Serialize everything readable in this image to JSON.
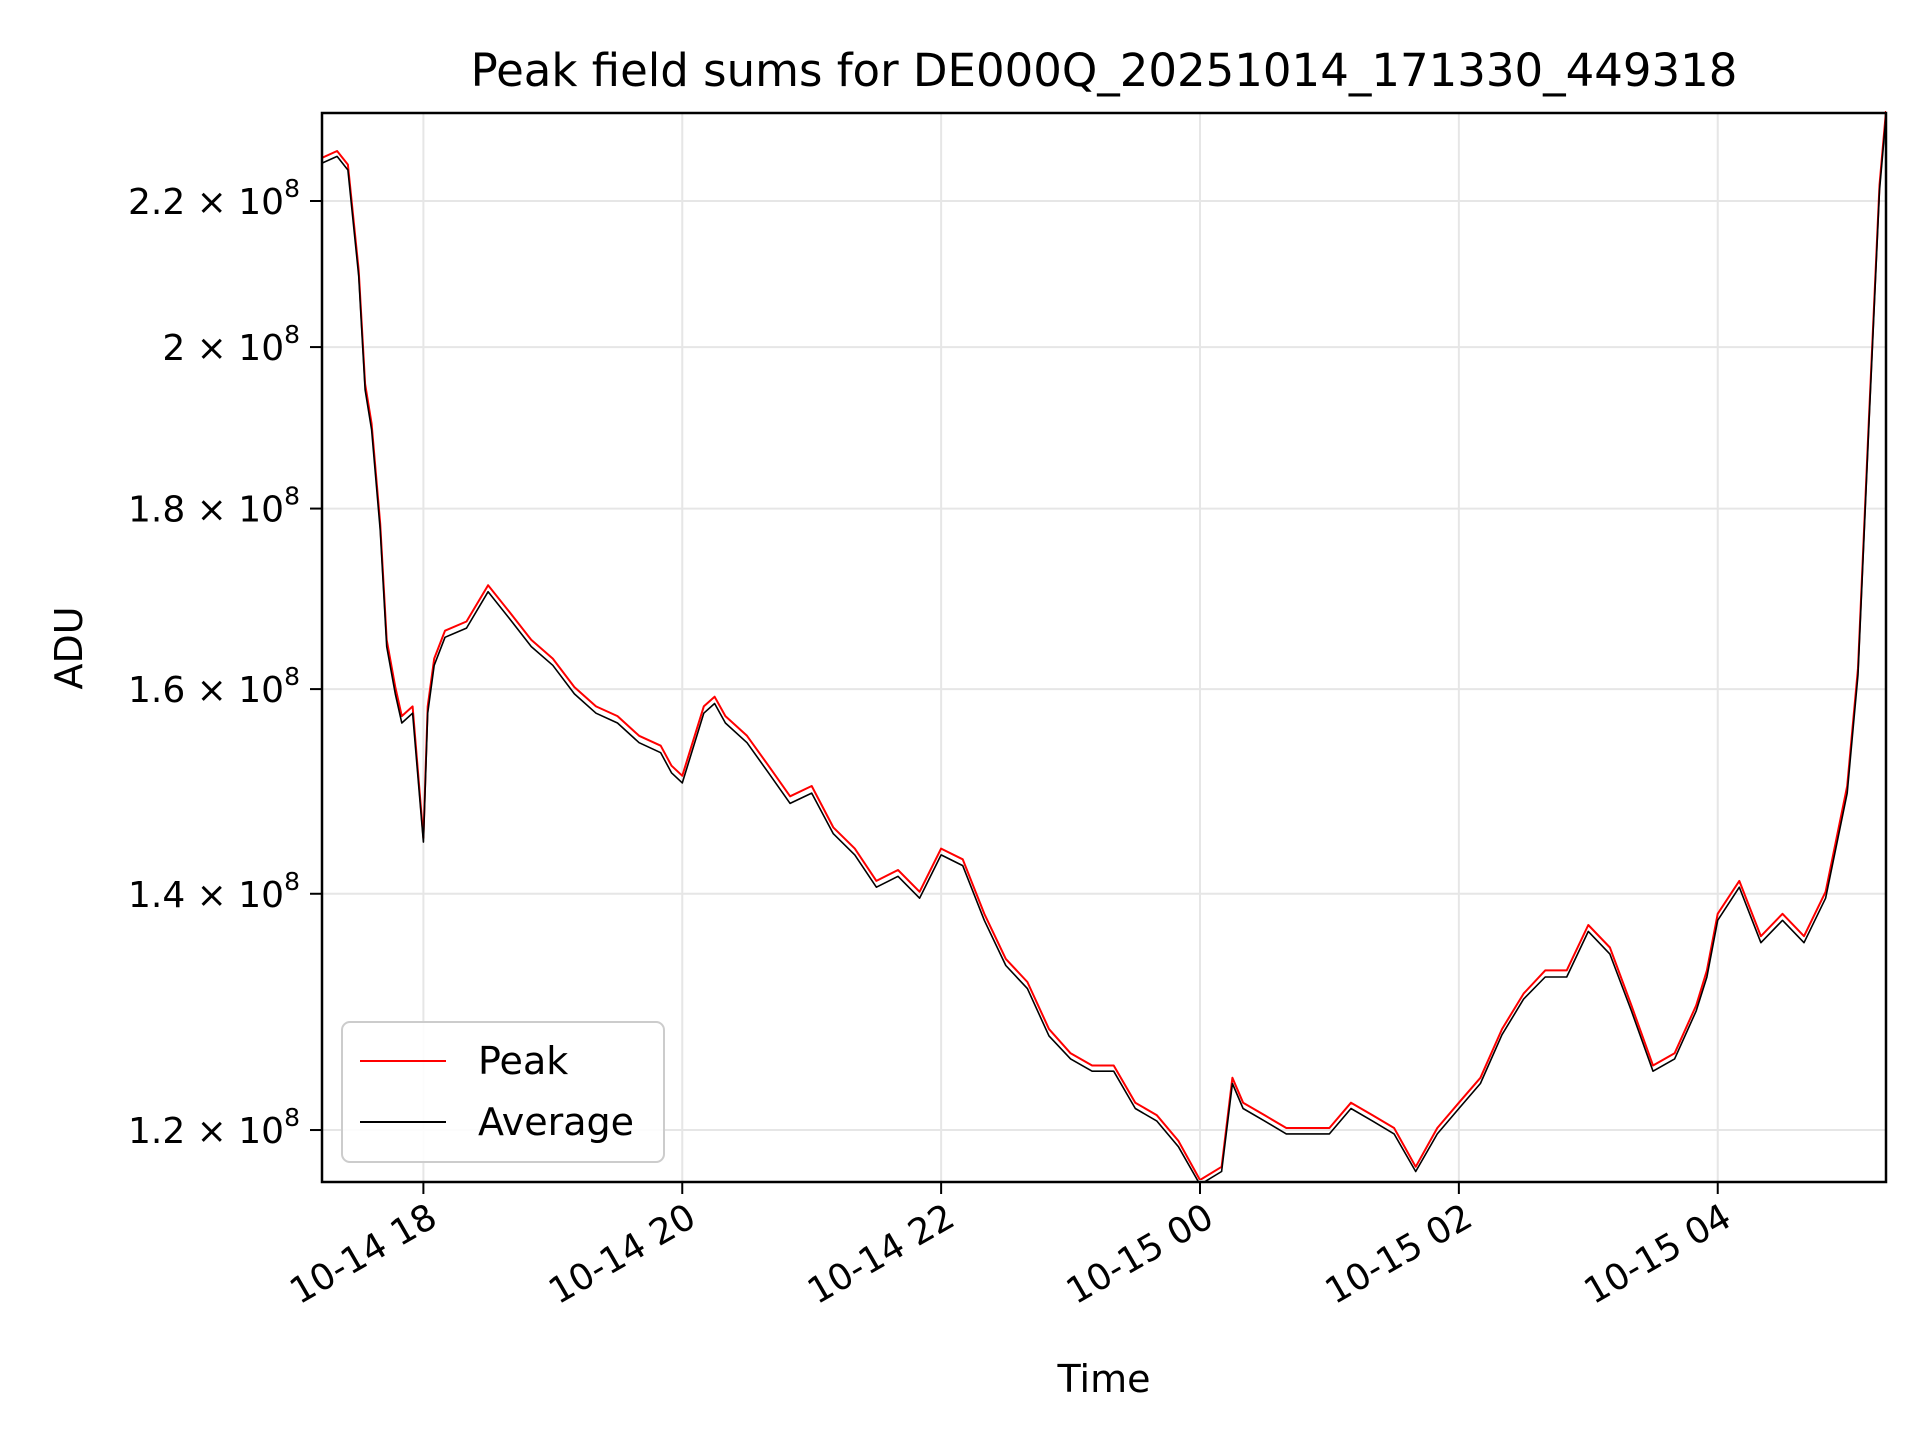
{
  "chart_data": {
    "type": "line",
    "title": "Peak field sums for DE000Q_20251014_171330_449318",
    "xlabel": "Time",
    "ylabel": "ADU",
    "y_scale": "log",
    "grid": true,
    "legend_position": "lower-left",
    "xlim": [
      "2025-10-14 17:13",
      "2025-10-15 05:18"
    ],
    "ylim": [
      116000000,
      233000000
    ],
    "x_ticks": [
      {
        "value": "2025-10-14 18:00",
        "label": "10-14 18"
      },
      {
        "value": "2025-10-14 20:00",
        "label": "10-14 20"
      },
      {
        "value": "2025-10-14 22:00",
        "label": "10-14 22"
      },
      {
        "value": "2025-10-15 00:00",
        "label": "10-15 00"
      },
      {
        "value": "2025-10-15 02:00",
        "label": "10-15 02"
      },
      {
        "value": "2025-10-15 04:00",
        "label": "10-15 04"
      }
    ],
    "y_ticks": [
      {
        "value": 120000000,
        "mantissa": "1.2",
        "exponent": "8"
      },
      {
        "value": 140000000,
        "mantissa": "1.4",
        "exponent": "8"
      },
      {
        "value": 160000000,
        "mantissa": "1.6",
        "exponent": "8"
      },
      {
        "value": 180000000,
        "mantissa": "1.8",
        "exponent": "8"
      },
      {
        "value": 200000000,
        "mantissa": "2",
        "exponent": "8"
      },
      {
        "value": 220000000,
        "mantissa": "2.2",
        "exponent": "8"
      }
    ],
    "x": [
      "2025-10-14 17:13",
      "2025-10-14 17:20",
      "2025-10-14 17:25",
      "2025-10-14 17:30",
      "2025-10-14 17:33",
      "2025-10-14 17:36",
      "2025-10-14 17:40",
      "2025-10-14 17:43",
      "2025-10-14 17:47",
      "2025-10-14 17:50",
      "2025-10-14 17:55",
      "2025-10-14 18:00",
      "2025-10-14 18:02",
      "2025-10-14 18:05",
      "2025-10-14 18:10",
      "2025-10-14 18:20",
      "2025-10-14 18:30",
      "2025-10-14 18:40",
      "2025-10-14 18:50",
      "2025-10-14 19:00",
      "2025-10-14 19:10",
      "2025-10-14 19:20",
      "2025-10-14 19:30",
      "2025-10-14 19:40",
      "2025-10-14 19:50",
      "2025-10-14 19:55",
      "2025-10-14 20:00",
      "2025-10-14 20:10",
      "2025-10-14 20:15",
      "2025-10-14 20:20",
      "2025-10-14 20:30",
      "2025-10-14 20:40",
      "2025-10-14 20:50",
      "2025-10-14 21:00",
      "2025-10-14 21:10",
      "2025-10-14 21:20",
      "2025-10-14 21:30",
      "2025-10-14 21:40",
      "2025-10-14 21:50",
      "2025-10-14 22:00",
      "2025-10-14 22:10",
      "2025-10-14 22:20",
      "2025-10-14 22:30",
      "2025-10-14 22:40",
      "2025-10-14 22:50",
      "2025-10-14 23:00",
      "2025-10-14 23:10",
      "2025-10-14 23:20",
      "2025-10-14 23:30",
      "2025-10-14 23:40",
      "2025-10-14 23:50",
      "2025-10-15 00:00",
      "2025-10-15 00:10",
      "2025-10-15 00:15",
      "2025-10-15 00:20",
      "2025-10-15 00:30",
      "2025-10-15 00:40",
      "2025-10-15 00:50",
      "2025-10-15 01:00",
      "2025-10-15 01:10",
      "2025-10-15 01:20",
      "2025-10-15 01:30",
      "2025-10-15 01:40",
      "2025-10-15 01:50",
      "2025-10-15 02:00",
      "2025-10-15 02:10",
      "2025-10-15 02:20",
      "2025-10-15 02:30",
      "2025-10-15 02:40",
      "2025-10-15 02:50",
      "2025-10-15 03:00",
      "2025-10-15 03:10",
      "2025-10-15 03:20",
      "2025-10-15 03:30",
      "2025-10-15 03:40",
      "2025-10-15 03:50",
      "2025-10-15 03:55",
      "2025-10-15 04:00",
      "2025-10-15 04:10",
      "2025-10-15 04:20",
      "2025-10-15 04:30",
      "2025-10-15 04:40",
      "2025-10-15 04:50",
      "2025-10-15 05:00",
      "2025-10-15 05:05",
      "2025-10-15 05:10",
      "2025-10-15 05:15",
      "2025-10-15 05:18"
    ],
    "series": [
      {
        "name": "Peak",
        "color": "#ff0000",
        "values": [
          226000000,
          227000000,
          225000000,
          210000000,
          195000000,
          190000000,
          178000000,
          165000000,
          160000000,
          157000000,
          158000000,
          145000000,
          158000000,
          163000000,
          166000000,
          167000000,
          171000000,
          168000000,
          165000000,
          163000000,
          160000000,
          158000000,
          157000000,
          155000000,
          154000000,
          152000000,
          151000000,
          158000000,
          159000000,
          157000000,
          155000000,
          152000000,
          149000000,
          150000000,
          146000000,
          144000000,
          141000000,
          142000000,
          140000000,
          144000000,
          143000000,
          138000000,
          134000000,
          132000000,
          128000000,
          126000000,
          125000000,
          125000000,
          122000000,
          121000000,
          119000000,
          116000000,
          117000000,
          124000000,
          122000000,
          121000000,
          120000000,
          120000000,
          120000000,
          122000000,
          121000000,
          120000000,
          117000000,
          120000000,
          122000000,
          124000000,
          128000000,
          131000000,
          133000000,
          133000000,
          137000000,
          135000000,
          130000000,
          125000000,
          126000000,
          130000000,
          133000000,
          138000000,
          141000000,
          136000000,
          138000000,
          136000000,
          140000000,
          150000000,
          162000000,
          190000000,
          222000000,
          233000000
        ]
      },
      {
        "name": "Average",
        "color": "#000000",
        "values": [
          225500000,
          226500000,
          224500000,
          209500000,
          194500000,
          189500000,
          177500000,
          164500000,
          159500000,
          156500000,
          157500000,
          144800000,
          157500000,
          162500000,
          165500000,
          166500000,
          170500000,
          167500000,
          164500000,
          162500000,
          159500000,
          157500000,
          156500000,
          154500000,
          153500000,
          151500000,
          150500000,
          157500000,
          158500000,
          156500000,
          154500000,
          151500000,
          148500000,
          149500000,
          145600000,
          143600000,
          140600000,
          141600000,
          139600000,
          143600000,
          142600000,
          137600000,
          133600000,
          131600000,
          127600000,
          125700000,
          124700000,
          124700000,
          121700000,
          120700000,
          118700000,
          115800000,
          116800000,
          123700000,
          121700000,
          120700000,
          119700000,
          119700000,
          119700000,
          121700000,
          120700000,
          119700000,
          116800000,
          119700000,
          121700000,
          123700000,
          127700000,
          130700000,
          132600000,
          132600000,
          136600000,
          134600000,
          129700000,
          124700000,
          125700000,
          129700000,
          132600000,
          137600000,
          140600000,
          135600000,
          137600000,
          135600000,
          139600000,
          149500000,
          161500000,
          189500000,
          221500000,
          232500000
        ]
      }
    ]
  }
}
